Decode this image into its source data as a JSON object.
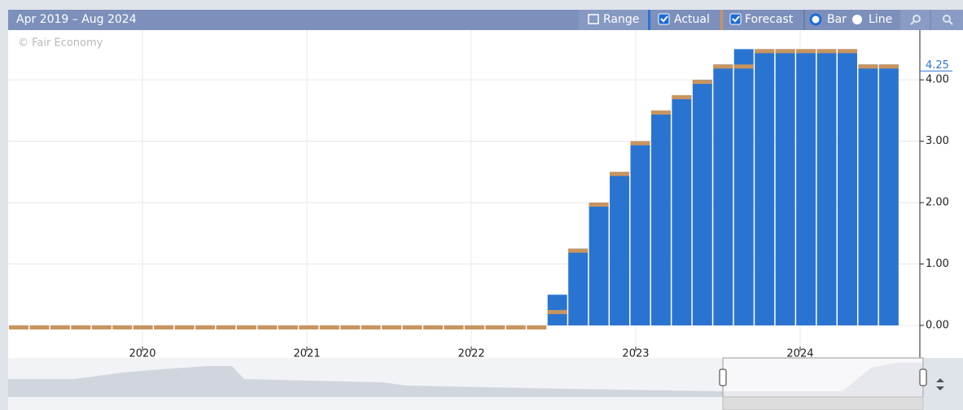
{
  "chart_data": {
    "type": "bar",
    "title": "Apr 2019 – Aug 2024",
    "watermark": "© Fair Economy",
    "controls": {
      "range": "Range",
      "bar": "Bar",
      "line": "Line"
    },
    "categories": [
      null,
      null,
      null,
      null,
      null,
      null,
      null,
      null,
      null,
      null,
      null,
      null,
      null,
      null,
      null,
      null,
      null,
      null,
      null,
      null,
      null,
      null,
      null,
      null,
      null,
      null,
      null,
      null,
      null,
      null,
      null,
      null,
      null,
      null,
      null,
      null,
      null,
      null,
      null,
      null,
      null,
      null,
      null
    ],
    "series": [
      {
        "name": "Actual",
        "color": "#2a74d1",
        "values": [
          0,
          0,
          0,
          0,
          0,
          0,
          0,
          0,
          0,
          0,
          0,
          0,
          0,
          0,
          0,
          0,
          0,
          0,
          0,
          0,
          0,
          0,
          0,
          0,
          0,
          0,
          0.5,
          1.25,
          2.0,
          2.5,
          3.0,
          3.5,
          3.75,
          4.0,
          4.25,
          4.5,
          4.5,
          4.5,
          4.5,
          4.5,
          4.5,
          4.25,
          4.25
        ]
      },
      {
        "name": "Forecast",
        "color": "#c9955e",
        "values": [
          0,
          0,
          0,
          0,
          0,
          0,
          0,
          0,
          0,
          0,
          0,
          0,
          0,
          0,
          0,
          0,
          0,
          0,
          0,
          0,
          0,
          0,
          0,
          0,
          0,
          0,
          0.25,
          1.25,
          2.0,
          2.5,
          3.0,
          3.5,
          3.75,
          4.0,
          4.25,
          4.25,
          4.5,
          4.5,
          4.5,
          4.5,
          4.5,
          4.25,
          4.25
        ]
      }
    ],
    "last_value": 4.25,
    "xlim": [
      2019.183,
      2024.728
    ],
    "xticks": [
      2020,
      2021,
      2022,
      2023,
      2024
    ],
    "ylim": [
      -0.53,
      4.81
    ],
    "yticks": [
      {
        "value": 0,
        "label": "0.00"
      },
      {
        "value": 1,
        "label": "1.00"
      },
      {
        "value": 2,
        "label": "2.00"
      },
      {
        "value": 3,
        "label": "3.00"
      },
      {
        "value": 4,
        "label": "4.00"
      }
    ],
    "grid": true
  }
}
